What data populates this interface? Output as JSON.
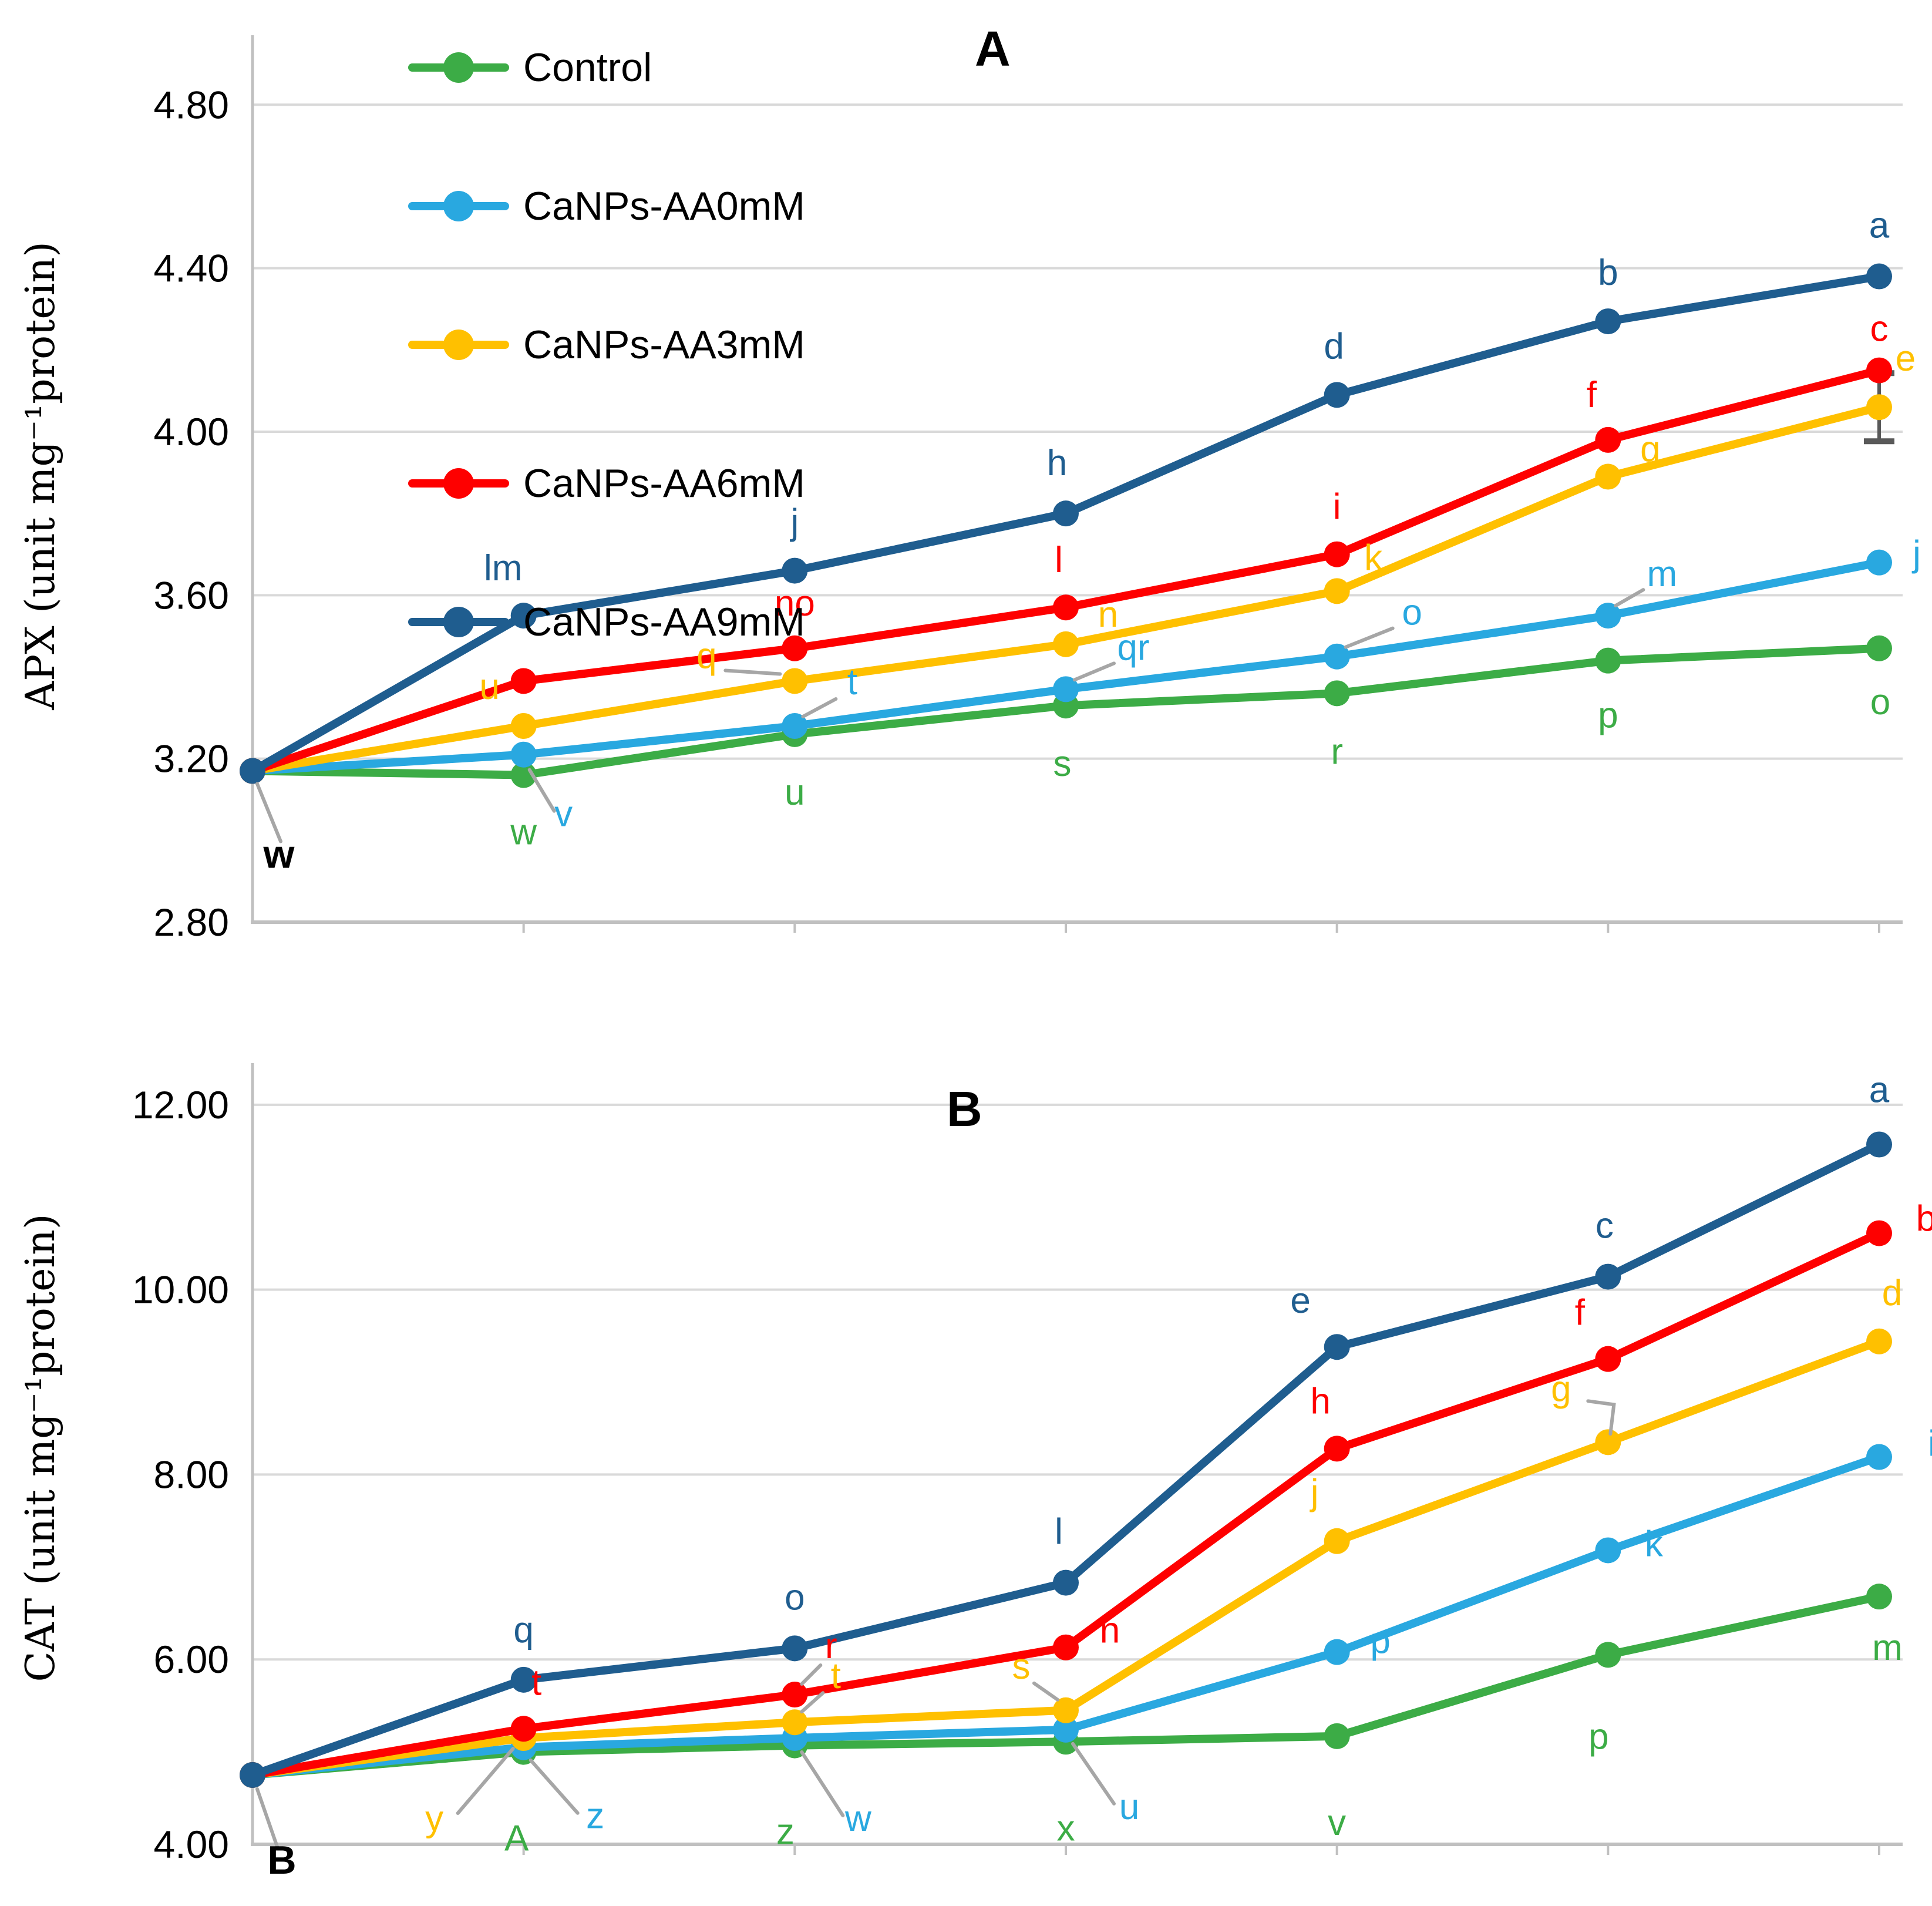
{
  "figure": {
    "panel_a_letter": "A",
    "panel_b_letter": "B",
    "y_axis_title_a": "APX (unit mg⁻¹protein)",
    "y_axis_title_b": "CAT (unit mg⁻¹protein)"
  },
  "legend": {
    "items": [
      {
        "label": "Control",
        "color": "#3CAC46"
      },
      {
        "label": "CaNPs-AA0mM",
        "color": "#29A8E0"
      },
      {
        "label": "CaNPs-AA3mM",
        "color": "#FFC000"
      },
      {
        "label": "CaNPs-AA6mM",
        "color": "#FE0000"
      },
      {
        "label": "CaNPs-AA9mM",
        "color": "#1F5D8F"
      }
    ]
  },
  "colors": {
    "gridline": "#D9D9D9",
    "axis": "#C0C0C0",
    "leader": "#A6A6A6",
    "start_label": "#000000",
    "error_bar": "#595959"
  },
  "chart_data": [
    {
      "type": "line",
      "panel": "A",
      "title": "A",
      "xlabel": "",
      "ylabel": "APX (unit mg⁻¹protein)",
      "ylim": [
        2.8,
        4.97
      ],
      "yticks": [
        2.8,
        3.2,
        3.6,
        4.0,
        4.4,
        4.8
      ],
      "ytick_labels": [
        "2.80",
        "3.20",
        "3.60",
        "4.00",
        "4.40",
        "4.80"
      ],
      "x": [
        0,
        1,
        2,
        3,
        4,
        5,
        6
      ],
      "grid": "horizontal",
      "legend_position": "top-left-inside",
      "start_label": "w",
      "error_bar": {
        "series_index": 2,
        "point_index": 6
      },
      "series": [
        {
          "name": "Control",
          "color": "#3CAC46",
          "values": [
            3.17,
            3.16,
            3.26,
            3.33,
            3.36,
            3.44,
            3.47
          ],
          "point_labels": [
            "",
            "w",
            "u",
            "s",
            "r",
            "p",
            "o"
          ]
        },
        {
          "name": "CaNPs-AA0mM",
          "color": "#29A8E0",
          "values": [
            3.17,
            3.21,
            3.28,
            3.37,
            3.45,
            3.55,
            3.68
          ],
          "point_labels": [
            "",
            "v",
            "t",
            "qr",
            "o",
            "m",
            "j"
          ]
        },
        {
          "name": "CaNPs-AA3mM",
          "color": "#FFC000",
          "values": [
            3.17,
            3.28,
            3.39,
            3.48,
            3.61,
            3.89,
            4.06
          ],
          "point_labels": [
            "",
            "u",
            "q",
            "n",
            "k",
            "g",
            "e"
          ]
        },
        {
          "name": "CaNPs-AA6mM",
          "color": "#FE0000",
          "values": [
            3.17,
            3.39,
            3.47,
            3.57,
            3.7,
            3.98,
            4.15
          ],
          "point_labels": [
            "",
            "",
            "no",
            "l",
            "i",
            "f",
            "c"
          ]
        },
        {
          "name": "CaNPs-AA9mM",
          "color": "#1F5D8F",
          "values": [
            3.17,
            3.55,
            3.66,
            3.8,
            4.09,
            4.27,
            4.38
          ],
          "point_labels": [
            "",
            "lm",
            "j",
            "h",
            "d",
            "b",
            "a"
          ]
        }
      ]
    },
    {
      "type": "line",
      "panel": "B",
      "title": "B",
      "xlabel": "",
      "ylabel": "CAT (unit mg⁻¹protein)",
      "ylim": [
        4.0,
        12.45
      ],
      "yticks": [
        4.0,
        6.0,
        8.0,
        10.0,
        12.0
      ],
      "ytick_labels": [
        "4.00",
        "6.00",
        "8.00",
        "10.00",
        "12.00"
      ],
      "x": [
        0,
        1,
        2,
        3,
        4,
        5,
        6
      ],
      "grid": "horizontal",
      "legend_position": "none",
      "start_label": "B",
      "error_bar": null,
      "series": [
        {
          "name": "Control",
          "color": "#3CAC46",
          "values": [
            4.75,
            5.0,
            5.07,
            5.11,
            5.17,
            6.05,
            6.68
          ],
          "point_labels": [
            "",
            "A",
            "z",
            "x",
            "v",
            "p",
            "m"
          ]
        },
        {
          "name": "CaNPs-AA0mM",
          "color": "#29A8E0",
          "values": [
            4.75,
            5.05,
            5.15,
            5.24,
            6.08,
            7.18,
            8.19
          ],
          "point_labels": [
            "",
            "z",
            "w",
            "u",
            "p",
            "k",
            "i"
          ]
        },
        {
          "name": "CaNPs-AA3mM",
          "color": "#FFC000",
          "values": [
            4.75,
            5.15,
            5.32,
            5.45,
            7.28,
            8.35,
            9.44
          ],
          "point_labels": [
            "",
            "y",
            "t",
            "s",
            "j",
            "g",
            "d"
          ]
        },
        {
          "name": "CaNPs-AA6mM",
          "color": "#FE0000",
          "values": [
            4.75,
            5.25,
            5.62,
            6.13,
            8.28,
            9.25,
            10.61
          ],
          "point_labels": [
            "",
            "t",
            "r",
            "n",
            "h",
            "f",
            "b"
          ]
        },
        {
          "name": "CaNPs-AA9mM",
          "color": "#1F5D8F",
          "values": [
            4.75,
            5.78,
            6.12,
            6.83,
            9.38,
            10.14,
            11.57
          ],
          "point_labels": [
            "",
            "q",
            "o",
            "l",
            "e",
            "c",
            "a"
          ]
        }
      ]
    }
  ]
}
